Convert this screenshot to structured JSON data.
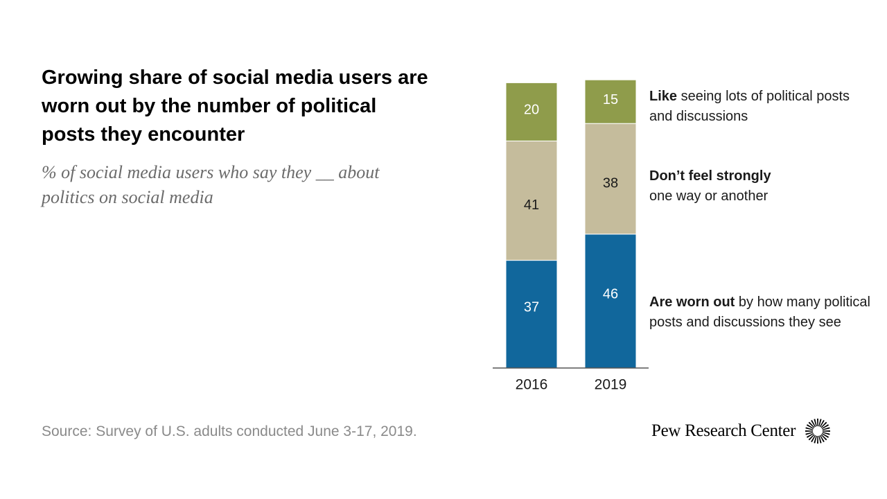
{
  "header": {
    "title": "Growing share of social media users are worn out by the number of political posts they encounter",
    "subtitle": "% of social media users who say they __ about politics on social media"
  },
  "footer": {
    "source": "Source: Survey of U.S. adults conducted June 3-17, 2019.",
    "logo_text": "Pew Research Center",
    "logo_icon": "pew-sunburst-icon"
  },
  "legend": {
    "like_bold": "Like",
    "like_rest": " seeing lots of political posts and discussions",
    "neutral_bold": "Don’t feel strongly",
    "neutral_rest": " one way or another",
    "worn_bold": "Are worn out",
    "worn_rest": " by how many political posts and discussions they see"
  },
  "chart_data": {
    "type": "bar",
    "stacked": true,
    "categories": [
      "2016",
      "2019"
    ],
    "series": [
      {
        "name": "Are worn out by how many political posts and discussions they see",
        "values": [
          37,
          46
        ],
        "color": "#11679c",
        "label_color": "#ffffff"
      },
      {
        "name": "Don’t feel strongly one way or another",
        "values": [
          41,
          38
        ],
        "color": "#c5bc9c",
        "label_color": "#1a1a1a"
      },
      {
        "name": "Like seeing lots of political posts and discussions",
        "values": [
          20,
          15
        ],
        "color": "#8f9c4b",
        "label_color": "#ffffff"
      }
    ],
    "ylim": [
      0,
      100
    ],
    "grid": false,
    "legend_position": "right"
  }
}
